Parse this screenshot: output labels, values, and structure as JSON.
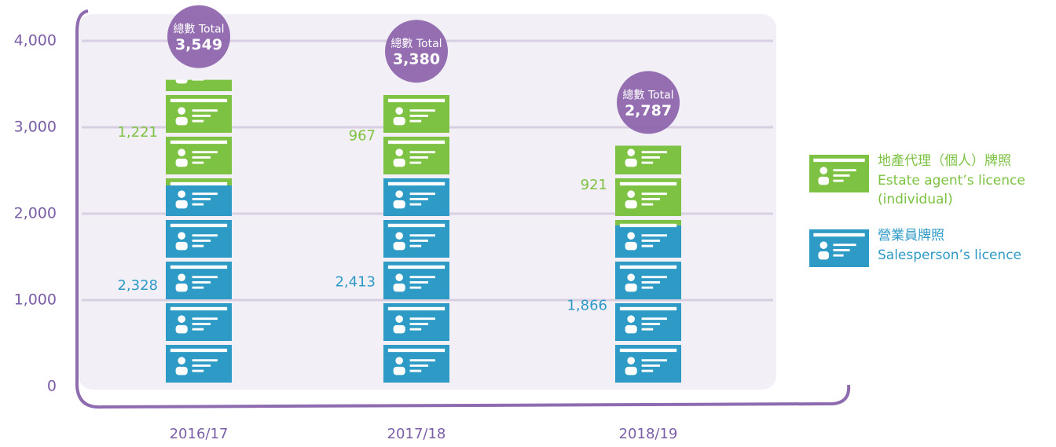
{
  "chart_data": {
    "type": "stacked_bar",
    "categories": [
      "2016/17",
      "2017/18",
      "2018/19"
    ],
    "series": [
      {
        "name": "營業員牌照",
        "name_en": "Salesperson’s licence",
        "color": "#2e9ac6",
        "values": [
          2328,
          2413,
          1866
        ],
        "value_labels": [
          "2,328",
          "2,413",
          "1,866"
        ]
      },
      {
        "name": "地產代理（個人）牌照",
        "name_en": "Estate agent’s licence (individual)",
        "color": "#7dc242",
        "values": [
          1221,
          967,
          921
        ],
        "value_labels": [
          "1,221",
          "967",
          "921"
        ]
      }
    ],
    "total_label": "總數 Total",
    "totals": [
      3549,
      3380,
      2787
    ],
    "total_labels": [
      "3,549",
      "3,380",
      "2,787"
    ],
    "ylim": [
      0,
      4000
    ],
    "yticks": [
      0,
      {
        "value": 1000,
        "label": "1,000"
      },
      {
        "value": 2000,
        "label": "2,000"
      },
      {
        "value": 3000,
        "label": "3,000"
      },
      {
        "value": 4000,
        "label": "4,000"
      }
    ],
    "grid": true
  }
}
